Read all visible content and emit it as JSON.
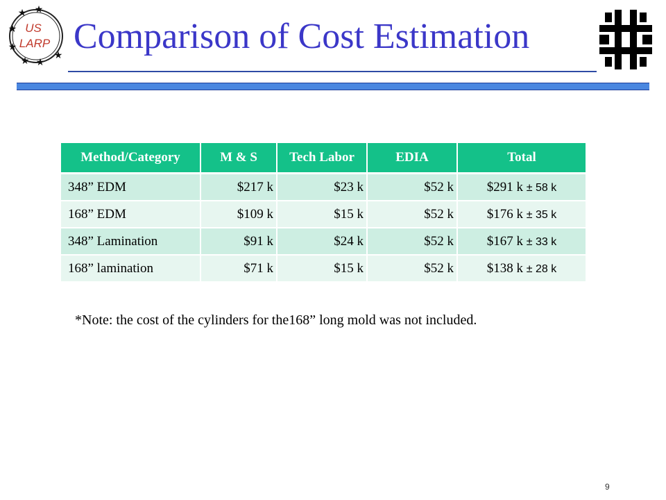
{
  "header": {
    "title": "Comparison of Cost Estimation",
    "logo_left_text": [
      "US",
      "LARP"
    ],
    "logo_left_icon": "us-larp-logo",
    "logo_right_icon": "fermilab-logo"
  },
  "table": {
    "columns": [
      "Method/Category",
      "M & S",
      "Tech Labor",
      "EDIA",
      "Total"
    ],
    "rows": [
      {
        "method": "348” EDM",
        "ms": "$217 k",
        "tech": "$23 k",
        "edia": "$52 k",
        "total": "$291 k",
        "pm": "± 58 k"
      },
      {
        "method": "168” EDM",
        "ms": "$109 k",
        "tech": "$15 k",
        "edia": "$52 k",
        "total": "$176 k",
        "pm": "± 35 k"
      },
      {
        "method": "348” Lamination",
        "ms": "$91 k",
        "tech": "$24 k",
        "edia": "$52 k",
        "total": "$167 k",
        "pm": "± 33 k"
      },
      {
        "method": "168” lamination",
        "ms": "$71 k",
        "tech": "$15 k",
        "edia": "$52 k",
        "total": "$138 k",
        "pm": "± 28 k"
      }
    ]
  },
  "note": "*Note: the cost of the cylinders for the168” long mold was not included.",
  "page_number": "9",
  "colors": {
    "title": "#3b37c8",
    "header_fill": "#14c189",
    "row_dark": "#cdeee2",
    "row_light": "#e7f6f0",
    "rule_bar": "#4a87e0"
  }
}
